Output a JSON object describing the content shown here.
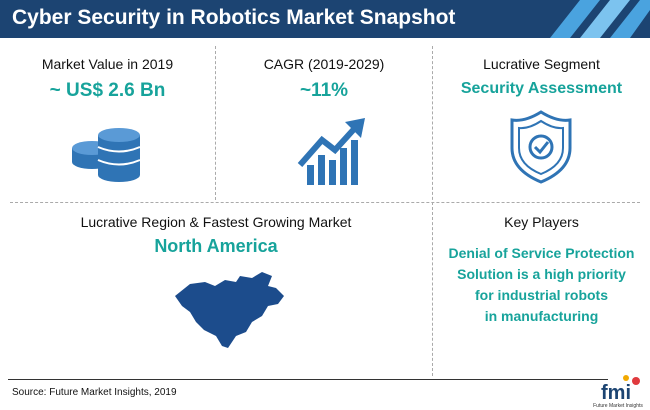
{
  "header": {
    "title": "Cyber Security in Robotics Market Snapshot"
  },
  "panels": [
    {
      "label": "Market Value in 2019",
      "value": "~ US$ 2.6 Bn"
    },
    {
      "label": "CAGR (2019-2029)",
      "value": "~11%"
    },
    {
      "label": "Lucrative Segment",
      "value": "Security Assessment"
    },
    {
      "label": "Lucrative Region & Fastest Growing Market",
      "value": "North America"
    },
    {
      "label": "Key Players",
      "lines": [
        "Denial of Service Protection",
        "Solution is a high priority",
        "for industrial robots",
        "in manufacturing"
      ]
    }
  ],
  "footer": {
    "source": "Source: Future Market Insights, 2019",
    "logo": "fmi",
    "logo_caption": "Future Market Insights"
  }
}
